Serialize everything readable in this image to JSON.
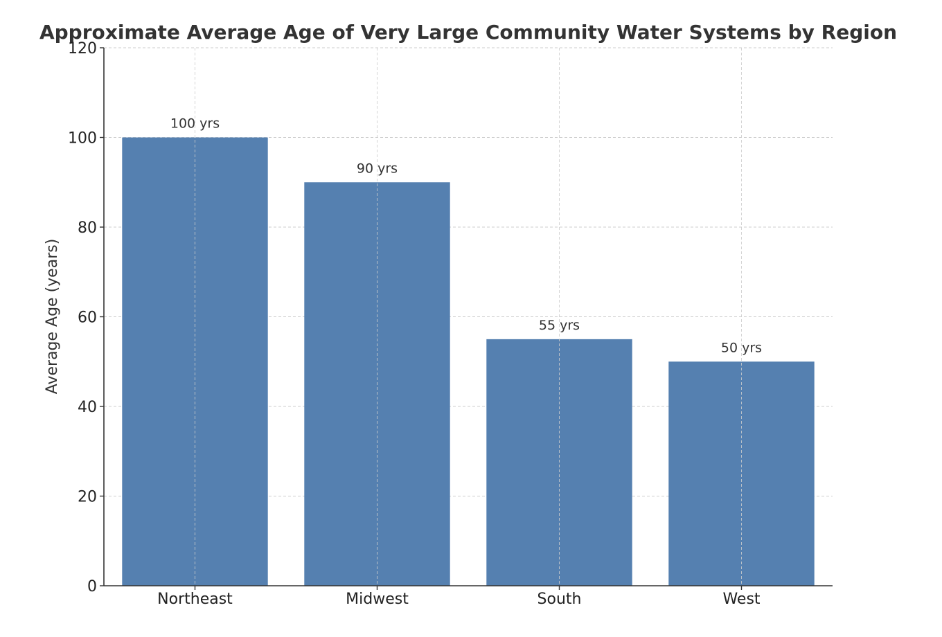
{
  "chart_data": {
    "type": "bar",
    "title": "Approximate Average Age of Very Large Community Water Systems by Region",
    "xlabel": "",
    "ylabel": "Average Age (years)",
    "categories": [
      "Northeast",
      "Midwest",
      "South",
      "West"
    ],
    "values": [
      100,
      90,
      55,
      50
    ],
    "data_labels": [
      "100 yrs",
      "90 yrs",
      "55 yrs",
      "50 yrs"
    ],
    "ylim": [
      0,
      120
    ],
    "yticks": [
      0,
      20,
      40,
      60,
      80,
      100,
      120
    ],
    "grid": true,
    "bar_color": "#5580b0",
    "grid_color": "#cccccc",
    "axis_color": "#333333"
  }
}
